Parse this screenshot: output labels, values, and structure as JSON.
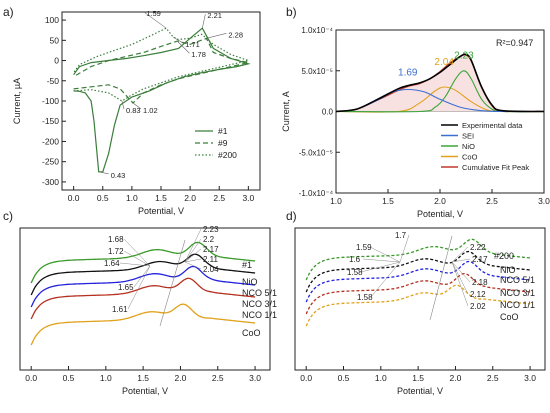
{
  "panel_labels": [
    "a)",
    "b)",
    "c)",
    "d)"
  ],
  "chart_data": [
    {
      "panel": "a)",
      "type": "line",
      "xlabel": "Potential, V",
      "ylabel": "Current, µA",
      "xlim": [
        -0.2,
        3.2
      ],
      "ylim": [
        -320,
        120
      ],
      "xticks": [
        0.0,
        0.5,
        1.0,
        1.5,
        2.0,
        2.5,
        3.0
      ],
      "yticks": [
        100,
        50,
        0,
        -50,
        -100,
        -150,
        -200,
        -250,
        -300
      ],
      "legend_position": "bottom-right",
      "series": [
        {
          "name": "#1",
          "dash": "solid",
          "color": "#3a7d3a",
          "x": [
            0.0,
            0.1,
            0.2,
            0.3,
            0.35,
            0.43,
            0.5,
            0.6,
            0.7,
            0.8,
            1.0,
            1.3,
            1.6,
            1.9,
            2.2,
            2.5,
            2.8,
            3.0,
            3.0,
            2.7,
            2.4,
            2.21,
            2.0,
            1.8,
            1.5,
            1.2,
            0.9,
            0.6,
            0.3,
            0.1,
            0.0
          ],
          "y": [
            -75,
            -76,
            -80,
            -100,
            -150,
            -275,
            -275,
            -230,
            -160,
            -110,
            -90,
            -75,
            -55,
            -40,
            -30,
            -22,
            -15,
            -8,
            -8,
            5,
            30,
            80,
            55,
            30,
            20,
            12,
            5,
            0,
            -5,
            -15,
            -35
          ]
        },
        {
          "name": "#9",
          "dash": "dashed",
          "color": "#3a7d3a",
          "x": [
            0.0,
            0.3,
            0.6,
            0.8,
            1.02,
            1.2,
            1.5,
            1.8,
            2.1,
            2.4,
            2.7,
            3.0,
            3.0,
            2.7,
            2.4,
            2.28,
            2.0,
            1.78,
            1.5,
            1.2,
            0.9,
            0.6,
            0.3,
            0.0
          ],
          "y": [
            -70,
            -65,
            -60,
            -70,
            -105,
            -80,
            -60,
            -45,
            -35,
            -25,
            -15,
            -5,
            -5,
            5,
            20,
            55,
            40,
            48,
            35,
            20,
            10,
            0,
            -15,
            -40
          ]
        },
        {
          "name": "#200",
          "dash": "dotted",
          "color": "#3a7d3a",
          "x": [
            0.0,
            0.3,
            0.6,
            0.83,
            1.0,
            1.2,
            1.5,
            1.8,
            2.1,
            2.4,
            2.7,
            3.0,
            3.0,
            2.7,
            2.4,
            2.2,
            2.0,
            1.8,
            1.71,
            1.59,
            1.3,
            1.0,
            0.7,
            0.4,
            0.1,
            0.0
          ],
          "y": [
            -75,
            -72,
            -80,
            -100,
            -85,
            -70,
            -55,
            -40,
            -30,
            -20,
            -10,
            0,
            0,
            15,
            40,
            65,
            55,
            52,
            58,
            80,
            60,
            40,
            25,
            10,
            -10,
            -30
          ]
        }
      ],
      "annotations": [
        "1.59",
        "2.21",
        "2.28",
        "1.71",
        "1.78",
        "1.02",
        "0.83",
        "0.43"
      ]
    },
    {
      "panel": "b)",
      "type": "line",
      "xlabel": "Potential, V",
      "ylabel": "Current, A",
      "xlim": [
        1.0,
        3.0
      ],
      "ylim": [
        -0.0001,
        0.0001
      ],
      "xticks": [
        1.0,
        1.5,
        2.0,
        2.5,
        3.0
      ],
      "yticks": [
        "1.0x10⁻⁴",
        "5.0x10⁻⁵",
        "0.0",
        "-5.0x10⁻⁵",
        "-1.0x10⁻⁴"
      ],
      "ytick_values": [
        0.0001,
        5e-05,
        0.0,
        -5e-05,
        -0.0001
      ],
      "legend_position": "bottom-right",
      "r_squared": "R²=0.947",
      "series": [
        {
          "name": "Experimental data",
          "color": "#000000",
          "width": 1.6,
          "x": [
            1.0,
            1.2,
            1.4,
            1.6,
            1.7,
            1.8,
            1.9,
            2.0,
            2.1,
            2.2,
            2.25,
            2.3,
            2.4,
            2.5,
            2.6,
            3.0
          ],
          "y": [
            0.0,
            3e-06,
            1.5e-05,
            2.8e-05,
            3.2e-05,
            3.5e-05,
            4e-05,
            4.8e-05,
            5.8e-05,
            6.8e-05,
            7e-05,
            6.3e-05,
            3e-05,
            8e-06,
            1e-06,
            0.0
          ]
        },
        {
          "name": "SEI",
          "color": "#3b6fd1",
          "width": 1.1,
          "x": [
            1.0,
            1.2,
            1.4,
            1.55,
            1.69,
            1.85,
            2.0,
            2.2,
            2.4,
            2.6,
            3.0
          ],
          "y": [
            0.0,
            3e-06,
            1.4e-05,
            2.4e-05,
            2.7e-05,
            2.4e-05,
            1.5e-05,
            5e-06,
            1e-06,
            0.0,
            0.0
          ]
        },
        {
          "name": "NiO",
          "color": "#3aa63a",
          "width": 1.1,
          "x": [
            1.0,
            1.8,
            1.95,
            2.05,
            2.15,
            2.23,
            2.3,
            2.4,
            2.5,
            2.6,
            3.0
          ],
          "y": [
            0.0,
            0.0,
            5e-06,
            1.8e-05,
            4e-05,
            5e-05,
            4e-05,
            1.5e-05,
            3e-06,
            0.0,
            0.0
          ]
        },
        {
          "name": "CoO",
          "color": "#e0a21b",
          "width": 1.1,
          "x": [
            1.0,
            1.6,
            1.8,
            1.95,
            2.04,
            2.15,
            2.3,
            2.45,
            2.6,
            3.0
          ],
          "y": [
            0.0,
            0.0,
            1e-05,
            2.5e-05,
            3e-05,
            2.6e-05,
            1.2e-05,
            2e-06,
            0.0,
            0.0
          ]
        },
        {
          "name": "Cumulative Fit Peak",
          "color": "#c0392b",
          "width": 1.2,
          "x": [
            1.0,
            1.2,
            1.4,
            1.6,
            1.7,
            1.8,
            1.9,
            2.0,
            2.1,
            2.2,
            2.25,
            2.3,
            2.4,
            2.5,
            2.6,
            3.0
          ],
          "y": [
            0.0,
            3e-06,
            1.4e-05,
            2.6e-05,
            3.1e-05,
            3.4e-05,
            4e-05,
            4.9e-05,
            6e-05,
            6.8e-05,
            6.9e-05,
            6.2e-05,
            3e-05,
            7e-06,
            1e-06,
            0.0
          ]
        }
      ],
      "peak_labels": [
        {
          "text": "1.69",
          "color": "#3b6fd1"
        },
        {
          "text": "2.04",
          "color": "#e0a21b"
        },
        {
          "text": "2.23",
          "color": "#3aa63a"
        }
      ]
    },
    {
      "panel": "c)",
      "type": "line",
      "xlabel": "Potential, V",
      "xlim": [
        -0.15,
        3.2
      ],
      "xticks": [
        0.0,
        0.5,
        1.0,
        1.5,
        2.0,
        2.5,
        3.0
      ],
      "tag": "#1",
      "series": [
        {
          "name": "NiO",
          "color": "#3a9a2a"
        },
        {
          "name": "NCO 5/1",
          "color": "#111111"
        },
        {
          "name": "NCO 3/1",
          "color": "#2222dd"
        },
        {
          "name": "NCO 1/1",
          "color": "#b5311f"
        },
        {
          "name": "CoO",
          "color": "#e0a21b"
        }
      ],
      "annotations": [
        "1.68",
        "1.72",
        "1.64",
        "1.65",
        "1.61",
        "2.23",
        "2.2",
        "2.17",
        "2.11",
        "2.04"
      ]
    },
    {
      "panel": "d)",
      "type": "line",
      "xlabel": "Potential, V",
      "xlim": [
        -0.15,
        3.2
      ],
      "xticks": [
        0.0,
        0.5,
        1.0,
        1.5,
        2.0,
        2.5,
        3.0
      ],
      "tag": "#200",
      "series": [
        {
          "name": "NiO",
          "color": "#3a9a2a"
        },
        {
          "name": "NCO 5/1",
          "color": "#111111"
        },
        {
          "name": "NCO 3/1",
          "color": "#2222dd"
        },
        {
          "name": "NCO 1/1",
          "color": "#b5311f"
        },
        {
          "name": "CoO",
          "color": "#e0a21b"
        }
      ],
      "annotations": [
        "1.7",
        "1.59",
        "1.6",
        "1.58",
        "1.58",
        "2.22",
        "2.17",
        "2.18",
        "2.12",
        "2.02"
      ]
    }
  ]
}
